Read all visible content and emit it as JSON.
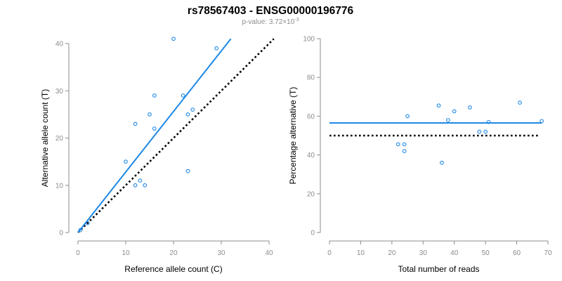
{
  "title": "rs78567403 - ENSG00000196776",
  "subtitle": {
    "prefix": "p-value: 3.72×10",
    "exponent": "-3"
  },
  "colors": {
    "points": "#1e88e5",
    "fit": "#1e88e5",
    "reference": "#000000",
    "axis": "#8c8c8c"
  },
  "chart_data": [
    {
      "type": "scatter",
      "xlabel": "Reference allele count (C)",
      "ylabel": "Alternative allele count (T)",
      "xlim": [
        0,
        40
      ],
      "ylim": [
        0,
        40
      ],
      "xticks": [
        0,
        10,
        20,
        30,
        40
      ],
      "yticks": [
        0,
        10,
        20,
        30,
        40
      ],
      "points": [
        {
          "x": 0.5,
          "y": 0.5
        },
        {
          "x": 2,
          "y": 2
        },
        {
          "x": 10,
          "y": 15
        },
        {
          "x": 12,
          "y": 23
        },
        {
          "x": 12,
          "y": 10
        },
        {
          "x": 13,
          "y": 11
        },
        {
          "x": 14,
          "y": 10
        },
        {
          "x": 15,
          "y": 25
        },
        {
          "x": 16,
          "y": 22
        },
        {
          "x": 16,
          "y": 29
        },
        {
          "x": 20,
          "y": 41
        },
        {
          "x": 22,
          "y": 29
        },
        {
          "x": 23,
          "y": 25
        },
        {
          "x": 23,
          "y": 13
        },
        {
          "x": 24,
          "y": 26
        },
        {
          "x": 29,
          "y": 39
        }
      ],
      "fit_line": {
        "x": [
          0,
          32
        ],
        "y": [
          0,
          41
        ]
      },
      "reference_line": {
        "x": [
          0,
          41
        ],
        "y": [
          0,
          41
        ]
      }
    },
    {
      "type": "scatter",
      "xlabel": "Total number of reads",
      "ylabel": "Percentage alternative (T)",
      "xlim": [
        0,
        70
      ],
      "ylim": [
        0,
        100
      ],
      "xticks": [
        0,
        10,
        20,
        30,
        40,
        50,
        60,
        70
      ],
      "yticks": [
        0,
        20,
        40,
        60,
        80,
        100
      ],
      "points": [
        {
          "x": 22,
          "y": 45.5
        },
        {
          "x": 24,
          "y": 45.5
        },
        {
          "x": 24,
          "y": 42
        },
        {
          "x": 25,
          "y": 60
        },
        {
          "x": 35,
          "y": 65.5
        },
        {
          "x": 36,
          "y": 36
        },
        {
          "x": 38,
          "y": 58
        },
        {
          "x": 40,
          "y": 62.5
        },
        {
          "x": 45,
          "y": 64.5
        },
        {
          "x": 48,
          "y": 52
        },
        {
          "x": 50,
          "y": 52
        },
        {
          "x": 51,
          "y": 57
        },
        {
          "x": 61,
          "y": 67
        },
        {
          "x": 68,
          "y": 57.5
        }
      ],
      "fit_line": {
        "x": [
          0,
          68
        ],
        "y": [
          56.5,
          56.5
        ]
      },
      "reference_line": {
        "x": [
          0,
          67
        ],
        "y": [
          50,
          50
        ]
      }
    }
  ]
}
